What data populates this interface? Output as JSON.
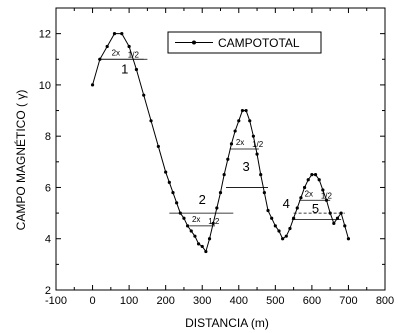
{
  "chart_data": {
    "type": "line",
    "xlabel": "DISTANCIA (m)",
    "ylabel": "CAMPO MAGNÉTICO ( γ)",
    "xlim": [
      -100,
      800
    ],
    "ylim": [
      2,
      13
    ],
    "x_ticks": [
      -100,
      0,
      100,
      200,
      300,
      400,
      500,
      600,
      700,
      800
    ],
    "y_ticks": [
      2,
      4,
      6,
      8,
      10,
      12
    ],
    "grid": false,
    "legend_position": "top-right",
    "series": [
      {
        "name": "CAMPOTOTAL",
        "color": "#000000",
        "marker": "dot",
        "points": [
          [
            0,
            10.0
          ],
          [
            20,
            11.0
          ],
          [
            40,
            11.5
          ],
          [
            60,
            12.0
          ],
          [
            80,
            12.0
          ],
          [
            100,
            11.5
          ],
          [
            120,
            10.6
          ],
          [
            140,
            9.6
          ],
          [
            160,
            8.6
          ],
          [
            180,
            7.6
          ],
          [
            200,
            6.6
          ],
          [
            210,
            6.2
          ],
          [
            220,
            5.8
          ],
          [
            230,
            5.4
          ],
          [
            240,
            5.0
          ],
          [
            250,
            4.8
          ],
          [
            260,
            4.5
          ],
          [
            270,
            4.3
          ],
          [
            280,
            4.1
          ],
          [
            290,
            3.8
          ],
          [
            300,
            3.7
          ],
          [
            310,
            3.5
          ],
          [
            320,
            4.0
          ],
          [
            330,
            4.6
          ],
          [
            340,
            5.2
          ],
          [
            350,
            5.8
          ],
          [
            360,
            6.5
          ],
          [
            370,
            7.1
          ],
          [
            380,
            7.7
          ],
          [
            390,
            8.2
          ],
          [
            400,
            8.6
          ],
          [
            410,
            9.0
          ],
          [
            420,
            9.0
          ],
          [
            430,
            8.6
          ],
          [
            440,
            8.0
          ],
          [
            450,
            7.3
          ],
          [
            460,
            6.5
          ],
          [
            470,
            5.8
          ],
          [
            480,
            5.1
          ],
          [
            490,
            4.8
          ],
          [
            500,
            4.5
          ],
          [
            510,
            4.3
          ],
          [
            520,
            4.0
          ],
          [
            530,
            4.1
          ],
          [
            540,
            4.4
          ],
          [
            550,
            4.8
          ],
          [
            560,
            5.2
          ],
          [
            570,
            5.6
          ],
          [
            580,
            6.0
          ],
          [
            590,
            6.3
          ],
          [
            600,
            6.5
          ],
          [
            610,
            6.5
          ],
          [
            620,
            6.3
          ],
          [
            630,
            5.9
          ],
          [
            640,
            5.5
          ],
          [
            650,
            5.0
          ],
          [
            660,
            4.6
          ],
          [
            670,
            4.8
          ],
          [
            680,
            5.0
          ],
          [
            690,
            4.5
          ],
          [
            700,
            4.0
          ]
        ]
      }
    ],
    "annotations": {
      "numbers": [
        {
          "text": "1",
          "x": 88,
          "y": 10.45
        },
        {
          "text": "2",
          "x": 300,
          "y": 5.35
        },
        {
          "text": "3",
          "x": 420,
          "y": 6.65
        },
        {
          "text": "4",
          "x": 530,
          "y": 5.2
        },
        {
          "text": "5",
          "x": 610,
          "y": 5.0
        }
      ],
      "width_markers": [
        {
          "label": "2x",
          "sub": "1/2",
          "x1": 25,
          "x2": 140,
          "y": 11.0,
          "ly": 11.15,
          "lx": 80
        },
        {
          "label": "2x",
          "sub": "1/2",
          "x1": 265,
          "x2": 335,
          "y": 4.5,
          "ly": 4.65,
          "lx": 300
        },
        {
          "label": "2x",
          "sub": "1/2",
          "x1": 375,
          "x2": 455,
          "y": 7.5,
          "ly": 7.65,
          "lx": 420
        },
        {
          "label": "2x",
          "sub": "1/2",
          "x1": 565,
          "x2": 650,
          "y": 5.5,
          "ly": 5.65,
          "lx": 608
        }
      ],
      "base_lines": [
        {
          "x1": 15,
          "x2": 150,
          "y": 11.0,
          "dashed": false
        },
        {
          "x1": 210,
          "x2": 385,
          "y": 5.0,
          "dashed": false
        },
        {
          "x1": 365,
          "x2": 480,
          "y": 6.0,
          "dashed": false
        },
        {
          "x1": 545,
          "x2": 680,
          "y": 4.75,
          "dashed": false
        },
        {
          "x1": 550,
          "x2": 690,
          "y": 5.0,
          "dashed": true
        }
      ]
    }
  }
}
